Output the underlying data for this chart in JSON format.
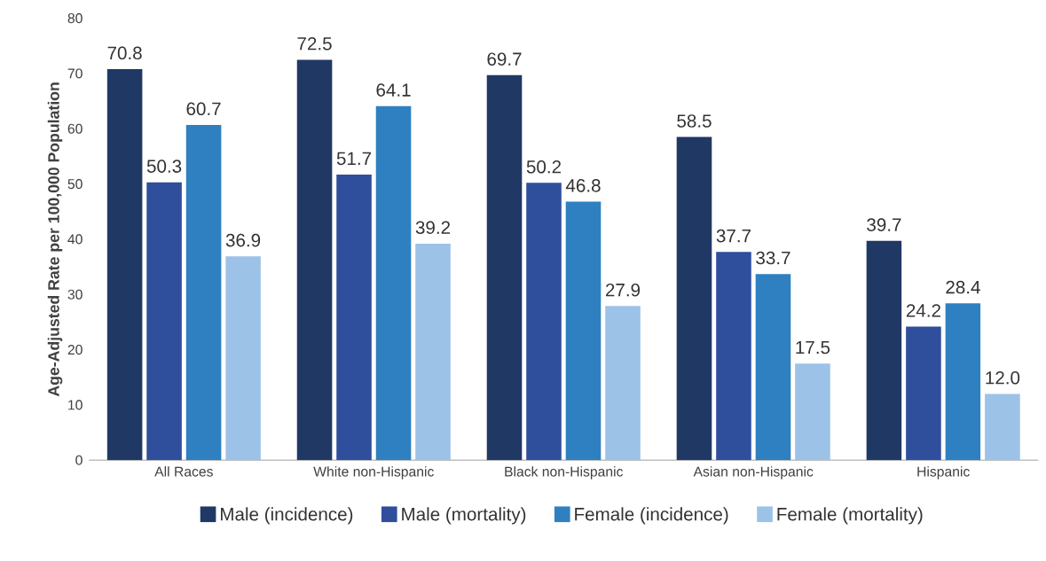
{
  "chart_data": {
    "type": "bar",
    "ylabel": "Age-Adjusted Rate per 100,000 Population",
    "categories": [
      "All Races",
      "White non-Hispanic",
      "Black non-Hispanic",
      "Asian non-Hispanic",
      "Hispanic"
    ],
    "series": [
      {
        "name": "Male (incidence)",
        "color": "#203864",
        "values": [
          70.8,
          72.5,
          69.7,
          58.5,
          39.7
        ],
        "value_labels": [
          "70.8",
          "72.5",
          "69.7",
          "58.5",
          "39.7"
        ]
      },
      {
        "name": "Male (mortality)",
        "color": "#2f4f9c",
        "values": [
          50.3,
          51.7,
          50.2,
          37.7,
          24.2
        ],
        "value_labels": [
          "50.3",
          "51.7",
          "50.2",
          "37.7",
          "24.2"
        ]
      },
      {
        "name": "Female (incidence)",
        "color": "#2e80c0",
        "values": [
          60.7,
          64.1,
          46.8,
          33.7,
          28.4
        ],
        "value_labels": [
          "60.7",
          "64.1",
          "46.8",
          "33.7",
          "28.4"
        ]
      },
      {
        "name": "Female (mortality)",
        "color": "#9cc2e8",
        "values": [
          36.9,
          39.2,
          27.9,
          17.5,
          12.0
        ],
        "value_labels": [
          "36.9",
          "39.2",
          "27.9",
          "17.5",
          "12.0"
        ]
      }
    ],
    "ylim": [
      0,
      80
    ],
    "yticks": [
      0,
      10,
      20,
      30,
      40,
      50,
      60,
      70,
      80
    ],
    "grid": false,
    "legend": "bottom"
  }
}
